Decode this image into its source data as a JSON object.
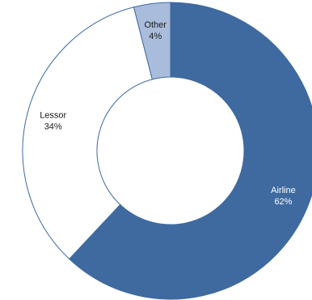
{
  "chart_data": {
    "type": "pie",
    "subtype": "donut",
    "slices": [
      {
        "label": "Airline",
        "value": 62,
        "value_label": "62%",
        "color": "#3e6aa0",
        "text_color": "#ffffff"
      },
      {
        "label": "Lessor",
        "value": 34,
        "value_label": "34%",
        "color": "#ffffff",
        "text_color": "#1a1a1a"
      },
      {
        "label": "Other",
        "value": 4,
        "value_label": "4%",
        "color": "#a9bcdb",
        "text_color": "#1a1a1a"
      }
    ],
    "title": "",
    "legend": "none",
    "start_angle": "12 o'clock",
    "direction": "clockwise",
    "edge_color": "#3e6aa0"
  }
}
